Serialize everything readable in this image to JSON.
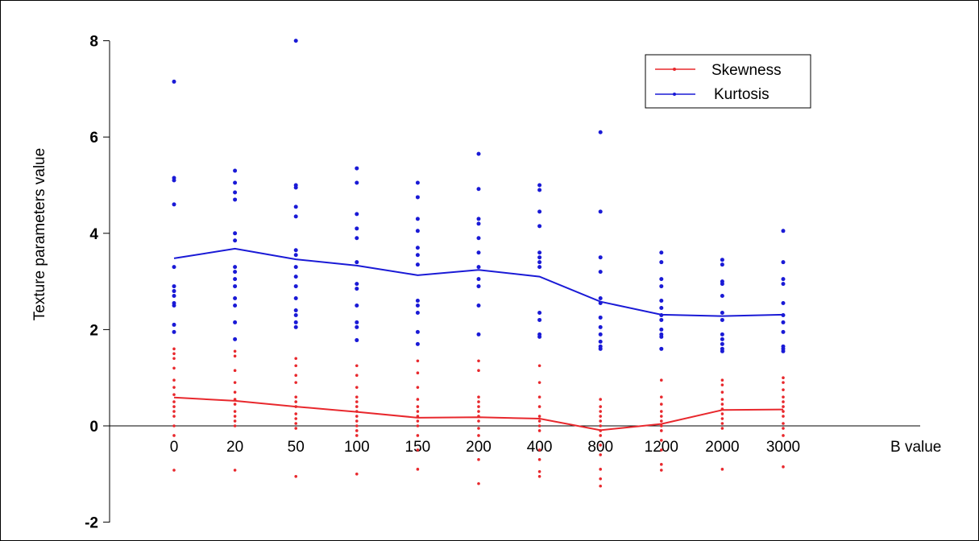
{
  "chart_data": {
    "type": "line",
    "xlabel": "B value",
    "ylabel": "Texture parameters value",
    "ylim": [
      -2,
      8
    ],
    "yticks": [
      "-2",
      "0",
      "2",
      "4",
      "6",
      "8"
    ],
    "categories": [
      "0",
      "20",
      "50",
      "100",
      "150",
      "200",
      "400",
      "800",
      "1200",
      "2000",
      "3000"
    ],
    "legend_position": "top-right",
    "series": [
      {
        "name": "Skewness",
        "color": "#e8282d",
        "values": [
          0.59,
          0.52,
          0.4,
          0.29,
          0.17,
          0.18,
          0.15,
          -0.09,
          0.04,
          0.33,
          0.34
        ],
        "points": [
          [
            1.6,
            1.5,
            1.4,
            1.2,
            0.95,
            0.8,
            0.65,
            0.5,
            0.4,
            0.3,
            0.2,
            0.0,
            -0.2,
            -0.92
          ],
          [
            1.55,
            1.45,
            1.15,
            0.9,
            0.7,
            0.55,
            0.45,
            0.3,
            0.2,
            0.1,
            0.0,
            -0.92
          ],
          [
            1.4,
            1.25,
            1.05,
            0.9,
            0.6,
            0.5,
            0.4,
            0.25,
            0.15,
            0.05,
            -0.05,
            -1.05
          ],
          [
            1.25,
            1.05,
            0.8,
            0.6,
            0.5,
            0.4,
            0.3,
            0.2,
            0.1,
            0.0,
            -0.1,
            -0.2,
            -1.0
          ],
          [
            1.35,
            1.1,
            0.8,
            0.55,
            0.4,
            0.3,
            0.2,
            0.1,
            0.0,
            -0.2,
            -0.5,
            -0.9
          ],
          [
            1.35,
            1.15,
            0.6,
            0.5,
            0.4,
            0.3,
            0.2,
            0.1,
            -0.05,
            -0.2,
            -0.7,
            -1.2
          ],
          [
            1.25,
            0.9,
            0.6,
            0.4,
            0.2,
            0.1,
            0.0,
            -0.1,
            -0.5,
            -0.7,
            -0.95,
            -1.05
          ],
          [
            0.55,
            0.4,
            0.3,
            0.2,
            0.1,
            0.0,
            -0.1,
            -0.2,
            -0.4,
            -0.6,
            -0.9,
            -1.1,
            -1.25
          ],
          [
            0.95,
            0.6,
            0.45,
            0.3,
            0.2,
            0.1,
            0.0,
            -0.1,
            -0.3,
            -0.5,
            -0.8,
            -0.92
          ],
          [
            0.95,
            0.85,
            0.7,
            0.55,
            0.45,
            0.35,
            0.25,
            0.15,
            0.05,
            -0.05,
            -0.9
          ],
          [
            1.0,
            0.9,
            0.75,
            0.6,
            0.5,
            0.4,
            0.3,
            0.2,
            0.05,
            -0.05,
            -0.2,
            -0.85
          ]
        ]
      },
      {
        "name": "Kurtosis",
        "color": "#1a1ad6",
        "values": [
          3.48,
          3.68,
          3.46,
          3.33,
          3.13,
          3.24,
          3.1,
          2.58,
          2.31,
          2.28,
          2.31
        ],
        "points": [
          [
            7.15,
            5.15,
            5.1,
            4.6,
            3.3,
            2.9,
            2.8,
            2.7,
            2.55,
            2.5,
            2.1,
            1.95
          ],
          [
            5.3,
            5.05,
            4.85,
            4.7,
            4.0,
            3.85,
            3.3,
            3.2,
            3.05,
            2.9,
            2.65,
            2.5,
            2.15,
            1.8
          ],
          [
            8.0,
            5.0,
            4.95,
            4.55,
            4.35,
            3.65,
            3.55,
            3.3,
            3.1,
            2.9,
            2.65,
            2.4,
            2.3,
            2.15,
            2.05
          ],
          [
            5.35,
            5.05,
            4.4,
            4.1,
            3.9,
            3.4,
            2.95,
            2.85,
            2.5,
            2.15,
            2.05,
            1.78
          ],
          [
            5.05,
            4.75,
            4.3,
            4.05,
            3.7,
            3.55,
            3.35,
            2.6,
            2.5,
            2.35,
            1.95,
            1.7
          ],
          [
            5.65,
            4.92,
            4.3,
            4.2,
            3.9,
            3.6,
            3.3,
            3.05,
            2.9,
            2.5,
            1.9
          ],
          [
            5.0,
            4.9,
            4.45,
            4.15,
            3.6,
            3.5,
            3.4,
            3.3,
            2.35,
            2.2,
            1.9,
            1.85
          ],
          [
            6.1,
            4.45,
            3.5,
            3.2,
            2.65,
            2.55,
            2.25,
            2.05,
            1.9,
            1.75,
            1.65,
            1.6
          ],
          [
            3.6,
            3.4,
            3.05,
            2.9,
            2.6,
            2.45,
            2.3,
            2.2,
            2.0,
            1.9,
            1.85,
            1.6
          ],
          [
            3.45,
            3.35,
            3.0,
            2.95,
            2.7,
            2.35,
            2.2,
            1.9,
            1.8,
            1.7,
            1.6,
            1.55
          ],
          [
            4.05,
            3.4,
            3.05,
            2.95,
            2.55,
            2.3,
            2.15,
            1.95,
            1.65,
            1.6,
            1.55
          ]
        ]
      }
    ]
  }
}
